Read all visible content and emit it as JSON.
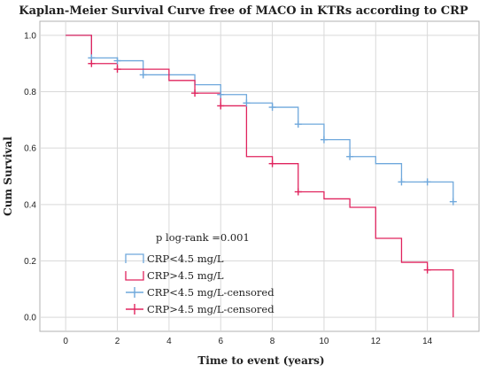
{
  "chart_data": {
    "type": "line",
    "title": "Kaplan-Meier Survival Curve free of MACO in KTRs according to CRP",
    "xlabel": "Time to event (years)",
    "ylabel": "Cum Survival",
    "xlim": [
      -1,
      16
    ],
    "ylim": [
      -0.05,
      1.05
    ],
    "x_ticks": [
      0,
      2,
      4,
      6,
      8,
      10,
      12,
      14
    ],
    "y_ticks": [
      0.0,
      0.2,
      0.4,
      0.6,
      0.8,
      1.0
    ],
    "x_tick_labels": [
      "0",
      "2",
      "4",
      "6",
      "8",
      "10",
      "12",
      "14"
    ],
    "y_tick_labels": [
      "0.0",
      "0.2",
      "0.4",
      "0.6",
      "0.8",
      "1.0"
    ],
    "grid": true,
    "annotation": "p log-rank =0.001",
    "legend_position": "bottom-left",
    "legend": [
      {
        "label": "CRP<4.5 mg/L",
        "symbol": "step",
        "color": "#6fa8dc"
      },
      {
        "label": "CRP>4.5 mg/L",
        "symbol": "step",
        "color": "#e0245e"
      },
      {
        "label": "CRP<4.5 mg/L-censored",
        "symbol": "plus",
        "color": "#6fa8dc"
      },
      {
        "label": "CRP>4.5 mg/L-censored",
        "symbol": "plus",
        "color": "#e0245e"
      }
    ],
    "series": [
      {
        "name": "CRP<4.5 mg/L",
        "color": "#6fa8dc",
        "steps": [
          [
            0,
            1.0
          ],
          [
            1,
            0.92
          ],
          [
            2,
            0.91
          ],
          [
            3,
            0.86
          ],
          [
            5,
            0.825
          ],
          [
            6,
            0.79
          ],
          [
            7,
            0.76
          ],
          [
            8,
            0.745
          ],
          [
            9,
            0.685
          ],
          [
            10,
            0.63
          ],
          [
            11,
            0.57
          ],
          [
            12,
            0.545
          ],
          [
            13,
            0.48
          ],
          [
            15,
            0.41
          ]
        ],
        "end_x": 15,
        "censored": [
          [
            1,
            0.92
          ],
          [
            2,
            0.91
          ],
          [
            3,
            0.86
          ],
          [
            6,
            0.79
          ],
          [
            7,
            0.76
          ],
          [
            8,
            0.745
          ],
          [
            9,
            0.685
          ],
          [
            10,
            0.63
          ],
          [
            11,
            0.57
          ],
          [
            13,
            0.48
          ],
          [
            14,
            0.48
          ],
          [
            15,
            0.41
          ]
        ]
      },
      {
        "name": "CRP>4.5 mg/L",
        "color": "#e0245e",
        "steps": [
          [
            0,
            1.0
          ],
          [
            1,
            0.9
          ],
          [
            2,
            0.88
          ],
          [
            4,
            0.84
          ],
          [
            5,
            0.795
          ],
          [
            6,
            0.75
          ],
          [
            7,
            0.57
          ],
          [
            8,
            0.545
          ],
          [
            9,
            0.445
          ],
          [
            10,
            0.42
          ],
          [
            11,
            0.39
          ],
          [
            12,
            0.28
          ],
          [
            13,
            0.195
          ],
          [
            14,
            0.168
          ],
          [
            15,
            0.0
          ]
        ],
        "end_x": 15,
        "censored": [
          [
            1,
            0.9
          ],
          [
            2,
            0.88
          ],
          [
            5,
            0.795
          ],
          [
            6,
            0.75
          ],
          [
            8,
            0.545
          ],
          [
            9,
            0.445
          ],
          [
            14,
            0.168
          ]
        ]
      }
    ]
  }
}
